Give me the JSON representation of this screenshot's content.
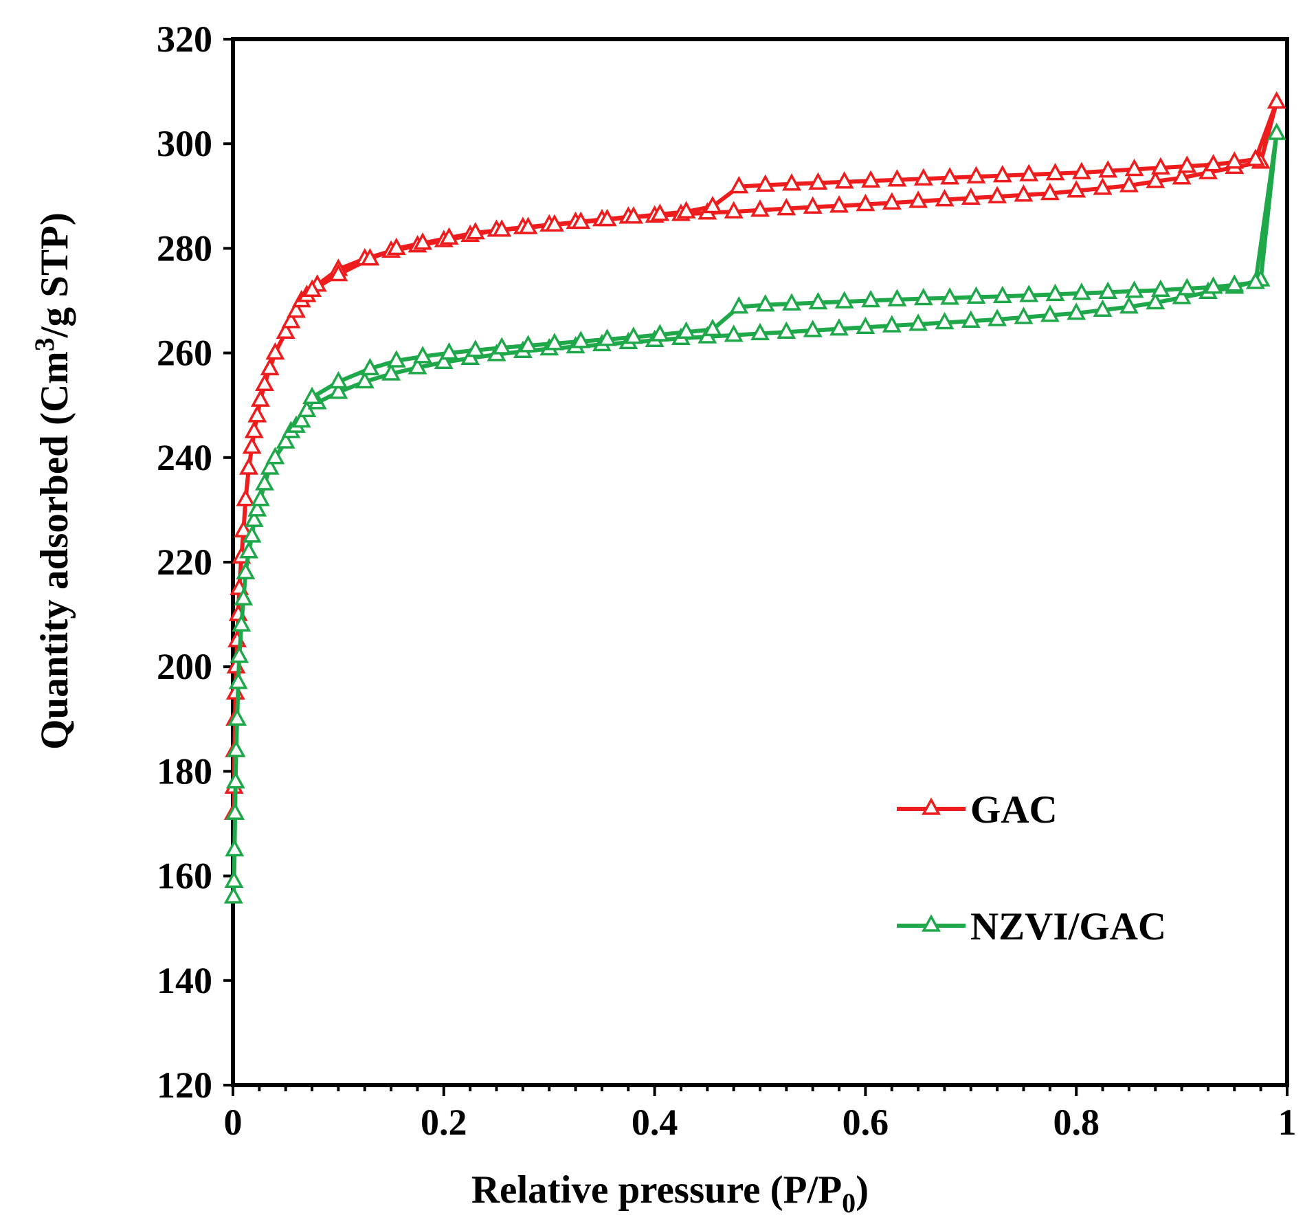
{
  "chart_data": {
    "type": "line",
    "xlabel": "Relative pressure (P/P",
    "xlabel_sub": "0",
    "xlabel_end": ")",
    "ylabel": "Quantity adsorbed (Cm",
    "ylabel_sup": "3",
    "ylabel_end": "/g STP)",
    "xlim": [
      0,
      1
    ],
    "ylim": [
      120,
      320
    ],
    "x_ticks": [
      0,
      0.2,
      0.4,
      0.6,
      0.8,
      1
    ],
    "x_tick_labels": [
      "0",
      "0.2",
      "0.4",
      "0.6",
      "0.8",
      "1"
    ],
    "y_ticks": [
      120,
      140,
      160,
      180,
      200,
      220,
      240,
      260,
      280,
      300,
      320
    ],
    "y_tick_labels": [
      "120",
      "140",
      "160",
      "180",
      "200",
      "220",
      "240",
      "260",
      "280",
      "300",
      "320"
    ],
    "grid": false,
    "legend_position": "right-lower",
    "series": [
      {
        "name": "GAC",
        "color": "#ee1c1c",
        "marker": "open-triangle",
        "x": [
          0.0005,
          0.001,
          0.0015,
          0.002,
          0.0025,
          0.003,
          0.004,
          0.005,
          0.006,
          0.008,
          0.01,
          0.012,
          0.015,
          0.018,
          0.02,
          0.023,
          0.026,
          0.03,
          0.035,
          0.04,
          0.05,
          0.055,
          0.06,
          0.065,
          0.07,
          0.08,
          0.1,
          0.125,
          0.15,
          0.175,
          0.2,
          0.225,
          0.25,
          0.275,
          0.3,
          0.325,
          0.35,
          0.375,
          0.4,
          0.425,
          0.45,
          0.475,
          0.5,
          0.525,
          0.55,
          0.575,
          0.6,
          0.625,
          0.65,
          0.675,
          0.7,
          0.725,
          0.75,
          0.775,
          0.8,
          0.825,
          0.85,
          0.875,
          0.9,
          0.925,
          0.95,
          0.975,
          0.99,
          0.97,
          0.95,
          0.93,
          0.905,
          0.88,
          0.855,
          0.83,
          0.805,
          0.78,
          0.755,
          0.73,
          0.705,
          0.68,
          0.655,
          0.63,
          0.605,
          0.58,
          0.555,
          0.53,
          0.505,
          0.48,
          0.455,
          0.43,
          0.405,
          0.38,
          0.355,
          0.33,
          0.305,
          0.28,
          0.255,
          0.23,
          0.205,
          0.18,
          0.155,
          0.13,
          0.1,
          0.075
        ],
        "values": [
          172,
          177,
          184,
          190,
          195,
          200,
          205,
          210,
          215,
          221,
          226,
          232,
          238,
          242,
          245,
          248,
          251,
          254,
          257,
          260,
          264,
          266,
          268,
          270,
          271,
          273,
          276,
          278,
          279.5,
          280.5,
          281.5,
          282.5,
          283.5,
          284,
          284.5,
          285,
          285.5,
          286,
          286.2,
          286.5,
          286.8,
          287,
          287.3,
          287.6,
          287.9,
          288.1,
          288.4,
          288.7,
          289,
          289.3,
          289.6,
          289.9,
          290.2,
          290.5,
          291,
          291.5,
          292,
          292.8,
          293.5,
          294.5,
          295.5,
          296.5,
          308,
          297,
          296.5,
          296,
          295.7,
          295.4,
          295.1,
          294.8,
          294.5,
          294.3,
          294.1,
          293.9,
          293.7,
          293.5,
          293.3,
          293.1,
          292.9,
          292.7,
          292.5,
          292.3,
          292.1,
          291.8,
          288,
          287,
          286.5,
          286,
          285.5,
          285,
          284.5,
          284,
          283.5,
          283,
          282,
          281,
          280,
          278,
          275,
          272
        ]
      },
      {
        "name": "NZVI/GAC",
        "color": "#1fa84a",
        "marker": "open-triangle",
        "x": [
          0.0005,
          0.001,
          0.0015,
          0.002,
          0.0025,
          0.003,
          0.004,
          0.005,
          0.006,
          0.008,
          0.01,
          0.012,
          0.015,
          0.018,
          0.02,
          0.023,
          0.026,
          0.03,
          0.035,
          0.04,
          0.05,
          0.055,
          0.06,
          0.065,
          0.07,
          0.08,
          0.1,
          0.125,
          0.15,
          0.175,
          0.2,
          0.225,
          0.25,
          0.275,
          0.3,
          0.325,
          0.35,
          0.375,
          0.4,
          0.425,
          0.45,
          0.475,
          0.5,
          0.525,
          0.55,
          0.575,
          0.6,
          0.625,
          0.65,
          0.675,
          0.7,
          0.725,
          0.75,
          0.775,
          0.8,
          0.825,
          0.85,
          0.875,
          0.9,
          0.925,
          0.95,
          0.975,
          0.99,
          0.97,
          0.95,
          0.93,
          0.905,
          0.88,
          0.855,
          0.83,
          0.805,
          0.78,
          0.755,
          0.73,
          0.705,
          0.68,
          0.655,
          0.63,
          0.605,
          0.58,
          0.555,
          0.53,
          0.505,
          0.48,
          0.455,
          0.43,
          0.405,
          0.38,
          0.355,
          0.33,
          0.305,
          0.28,
          0.255,
          0.23,
          0.205,
          0.18,
          0.155,
          0.13,
          0.1,
          0.075
        ],
        "values": [
          156,
          159,
          165,
          172,
          178,
          184,
          190,
          197,
          202,
          208,
          213,
          218,
          222,
          225,
          228,
          230,
          232,
          235,
          238,
          240,
          243,
          245,
          246,
          247,
          249,
          250.5,
          252.5,
          254.5,
          256,
          257.2,
          258.2,
          259,
          259.7,
          260.3,
          260.8,
          261.2,
          261.6,
          262,
          262.4,
          262.8,
          263.1,
          263.4,
          263.7,
          264,
          264.3,
          264.6,
          264.9,
          265.2,
          265.5,
          265.8,
          266.1,
          266.4,
          266.8,
          267.2,
          267.6,
          268.2,
          268.8,
          269.6,
          270.6,
          271.6,
          272.6,
          274,
          302,
          273.5,
          273,
          272.6,
          272.3,
          272,
          271.8,
          271.6,
          271.4,
          271.2,
          271,
          270.8,
          270.7,
          270.5,
          270.4,
          270.2,
          270,
          269.8,
          269.6,
          269.4,
          269.2,
          268.8,
          264.5,
          264,
          263.5,
          263,
          262.6,
          262.2,
          261.8,
          261.4,
          261,
          260.5,
          260,
          259.3,
          258.5,
          257,
          254.5,
          251.5
        ]
      }
    ]
  }
}
